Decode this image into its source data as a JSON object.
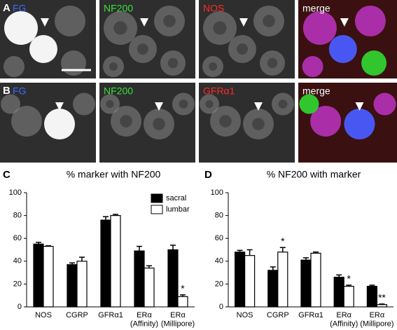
{
  "image_rows": [
    {
      "label": "A",
      "panels": [
        {
          "label": "FG",
          "color": "#3b6cff"
        },
        {
          "label": "NF200",
          "color": "#38e038"
        },
        {
          "label": "NOS",
          "color": "#ff2a2a"
        },
        {
          "label": "merge",
          "color": "#ffffff"
        }
      ]
    },
    {
      "label": "B",
      "panels": [
        {
          "label": "FG",
          "color": "#3b6cff"
        },
        {
          "label": "NF200",
          "color": "#38e038"
        },
        {
          "label": "GFRα1",
          "color": "#ff2a2a"
        },
        {
          "label": "merge",
          "color": "#ffffff"
        }
      ]
    }
  ],
  "chart_data": [
    {
      "type": "bar",
      "panel": "C",
      "title": "% marker with NF200",
      "categories": [
        "NOS",
        "CGRP",
        "GFRα1",
        "ERα\n(Affinity)",
        "ERα\n(Millipore)"
      ],
      "series": [
        {
          "name": "sacral",
          "color": "#000000",
          "values": [
            55,
            37,
            76,
            49,
            50
          ],
          "errors": [
            1.5,
            1.5,
            3,
            4,
            4
          ],
          "significance": [
            null,
            null,
            null,
            null,
            null
          ]
        },
        {
          "name": "lumbar",
          "color": "#ffffff",
          "values": [
            53,
            40,
            80,
            34,
            9
          ],
          "errors": [
            0.5,
            3.5,
            1,
            2,
            1.5
          ],
          "significance": [
            null,
            null,
            null,
            null,
            "*"
          ]
        }
      ],
      "ylim": [
        0,
        100
      ],
      "yticks": [
        0,
        20,
        40,
        60,
        80,
        100
      ],
      "legend": "upper right"
    },
    {
      "type": "bar",
      "panel": "D",
      "title": "% NF200 with marker",
      "categories": [
        "NOS",
        "CGRP",
        "GFRα1",
        "ERα\n(Affinity)",
        "ERα\n(Millipore)"
      ],
      "series": [
        {
          "name": "sacral",
          "color": "#000000",
          "values": [
            48,
            32,
            41,
            26,
            18
          ],
          "errors": [
            1.5,
            3,
            2,
            2,
            1
          ],
          "significance": [
            null,
            null,
            null,
            null,
            null
          ]
        },
        {
          "name": "lumbar",
          "color": "#ffffff",
          "values": [
            45,
            48,
            47,
            18,
            2
          ],
          "errors": [
            5,
            4,
            1,
            1,
            0.5
          ],
          "significance": [
            null,
            "*",
            null,
            "*",
            "**"
          ]
        }
      ],
      "ylim": [
        0,
        100
      ],
      "yticks": [
        0,
        20,
        40,
        60,
        80,
        100
      ]
    }
  ]
}
